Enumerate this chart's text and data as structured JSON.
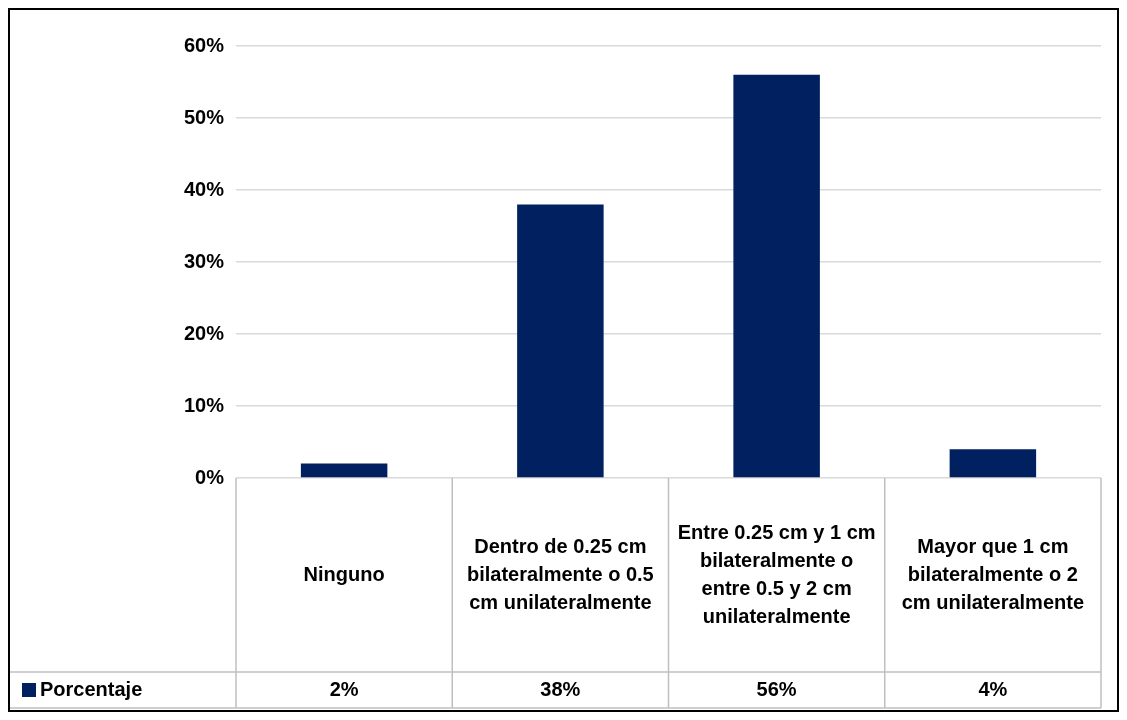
{
  "chart_data": {
    "type": "bar",
    "categories": [
      "Ninguno",
      "Dentro de 0.25 cm bilateralmente o 0.5 cm unilateralmente",
      "Entre 0.25 cm y 1 cm bilateralmente o entre 0.5 y 2 cm unilateralmente",
      "Mayor que 1 cm bilateralmente o 2 cm unilateralmente"
    ],
    "series": [
      {
        "name": "Porcentaje",
        "color": "#002060",
        "values": [
          2,
          38,
          56,
          4
        ],
        "value_labels": [
          "2%",
          "38%",
          "56%",
          "4%"
        ]
      }
    ],
    "ylim": [
      0,
      60
    ],
    "yticks": [
      {
        "value": 0,
        "label": "0%"
      },
      {
        "value": 10,
        "label": "10%"
      },
      {
        "value": 20,
        "label": "20%"
      },
      {
        "value": 30,
        "label": "30%"
      },
      {
        "value": 40,
        "label": "40%"
      },
      {
        "value": 50,
        "label": "50%"
      },
      {
        "value": 60,
        "label": "60%"
      }
    ],
    "grid": "y",
    "legend": "bottom"
  }
}
